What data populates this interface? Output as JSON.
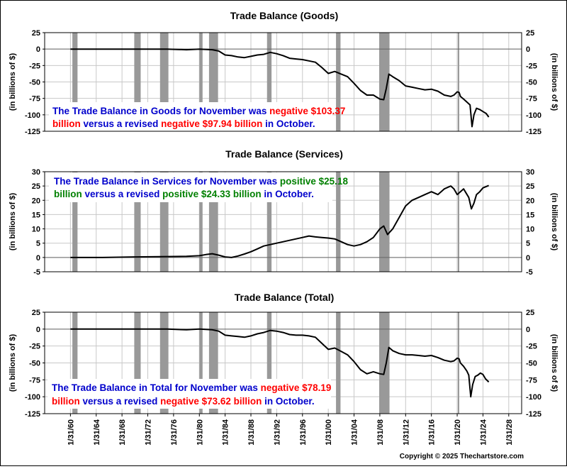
{
  "colors": {
    "recession": "#999999",
    "grid": "#c8c8c8",
    "line": "#000000",
    "blue": "#0000cc",
    "red": "#ff0000",
    "green": "#008000"
  },
  "x_ticks": [
    "1/31/60",
    "1/31/64",
    "1/31/68",
    "1/31/72",
    "1/31/76",
    "1/31/80",
    "1/31/84",
    "1/31/88",
    "1/31/92",
    "1/31/96",
    "1/31/00",
    "1/31/04",
    "1/31/08",
    "1/31/12",
    "1/31/16",
    "1/31/20",
    "1/31/24",
    "1/31/28"
  ],
  "copyright": "Copyright © 2025 Thechartstore.com",
  "recessions": [
    [
      1960.3,
      1961.1
    ],
    [
      1969.9,
      1970.9
    ],
    [
      1973.9,
      1975.2
    ],
    [
      1980.0,
      1980.5
    ],
    [
      1981.5,
      1982.9
    ],
    [
      1990.5,
      1991.2
    ],
    [
      2001.2,
      2001.9
    ],
    [
      2007.9,
      2009.5
    ],
    [
      2020.1,
      2020.3
    ]
  ],
  "chart_data": [
    {
      "type": "line",
      "title": "Trade Balance (Goods)",
      "ylabel_left": "(in billions of $)",
      "ylabel_right": "(in billions of $)",
      "ylim": [
        -125,
        25
      ],
      "yticks": [
        25,
        0,
        -25,
        -50,
        -75,
        -100,
        -125
      ],
      "xlim": [
        1956,
        2030
      ],
      "grid": true,
      "annotation": {
        "line1": [
          {
            "text": "The Trade Balance in Goods for November was ",
            "color": "blue"
          },
          {
            "text": "negative $103.37",
            "color": "red"
          }
        ],
        "line2": [
          {
            "text": "billion",
            "color": "red"
          },
          {
            "text": " versus a revised ",
            "color": "blue"
          },
          {
            "text": "negative $97.94 billion",
            "color": "red"
          },
          {
            "text": " in October.",
            "color": "blue"
          }
        ]
      },
      "series": [
        {
          "x": [
            1960,
            1965,
            1970,
            1975,
            1978,
            1980,
            1982,
            1983,
            1984,
            1985,
            1986,
            1987,
            1988,
            1989,
            1990,
            1991,
            1992,
            1993,
            1994,
            1995,
            1996,
            1997,
            1998,
            1999,
            2000,
            2001,
            2002,
            2003,
            2004,
            2005,
            2006,
            2007,
            2008,
            2008.6,
            2009.0,
            2009.4,
            2010,
            2011,
            2012,
            2013,
            2014,
            2015,
            2016,
            2017,
            2018,
            2019,
            2019.5,
            2020.0,
            2020.3,
            2020.5,
            2021,
            2022.0,
            2022.3,
            2022.6,
            2023,
            2023.5,
            2024,
            2024.5,
            2024.9
          ],
          "y": [
            0,
            0,
            0,
            0,
            -1,
            0,
            -1,
            -3,
            -9,
            -10,
            -12,
            -13,
            -11,
            -9,
            -8,
            -5,
            -7,
            -10,
            -14,
            -15,
            -16,
            -18,
            -20,
            -28,
            -37,
            -34,
            -38,
            -42,
            -52,
            -63,
            -70,
            -70,
            -76,
            -77,
            -60,
            -38,
            -42,
            -48,
            -56,
            -58,
            -60,
            -62,
            -61,
            -64,
            -70,
            -72,
            -70,
            -65,
            -66,
            -72,
            -76,
            -85,
            -118,
            -100,
            -90,
            -92,
            -95,
            -98,
            -103.37
          ]
        }
      ]
    },
    {
      "type": "line",
      "title": "Trade Balance (Services)",
      "ylabel_left": "(in billions of $)",
      "ylabel_right": "(in billions of $)",
      "ylim": [
        -5,
        30
      ],
      "yticks": [
        30,
        25,
        20,
        15,
        10,
        5,
        0,
        -5
      ],
      "xlim": [
        1956,
        2030
      ],
      "grid": true,
      "annotation": {
        "line1": [
          {
            "text": "The Trade Balance in Services for November was ",
            "color": "blue"
          },
          {
            "text": "positive $25.18",
            "color": "green"
          }
        ],
        "line2": [
          {
            "text": "billion",
            "color": "green"
          },
          {
            "text": " versus a revised ",
            "color": "blue"
          },
          {
            "text": "positive $24.33 billion",
            "color": "green"
          },
          {
            "text": " in October.",
            "color": "blue"
          }
        ]
      },
      "series": [
        {
          "x": [
            1960,
            1965,
            1970,
            1975,
            1978,
            1980,
            1981,
            1982,
            1983,
            1984,
            1985,
            1986,
            1987,
            1988,
            1989,
            1990,
            1991,
            1992,
            1993,
            1994,
            1995,
            1996,
            1997,
            1998,
            1999,
            2000,
            2001,
            2002,
            2003,
            2004,
            2005,
            2006,
            2007,
            2008,
            2008.6,
            2009.2,
            2010,
            2011,
            2012,
            2013,
            2014,
            2015,
            2016,
            2017,
            2018,
            2019,
            2019.5,
            2020.0,
            2020.5,
            2021,
            2021.8,
            2022.2,
            2022.6,
            2023,
            2023.5,
            2024,
            2024.9
          ],
          "y": [
            0,
            0,
            0.2,
            0.3,
            0.4,
            0.6,
            1.0,
            1.3,
            0.8,
            0.2,
            0,
            0.5,
            1.2,
            2,
            3,
            4,
            4.5,
            5,
            5.5,
            6,
            6.5,
            7,
            7.5,
            7.2,
            7,
            6.8,
            6.5,
            5.5,
            4.5,
            4,
            4.5,
            5.5,
            7,
            10,
            11,
            8,
            10,
            14,
            18,
            20,
            21,
            22,
            23,
            22,
            24,
            25,
            24,
            22,
            23,
            24,
            21,
            17,
            19,
            22,
            23,
            24.33,
            25.18
          ]
        }
      ]
    },
    {
      "type": "line",
      "title": "Trade Balance (Total)",
      "ylabel_left": "(in billions of $)",
      "ylabel_right": "(in billions of $)",
      "ylim": [
        -125,
        25
      ],
      "yticks": [
        25,
        0,
        -25,
        -50,
        -75,
        -100,
        -125
      ],
      "xlim": [
        1956,
        2030
      ],
      "grid": true,
      "annotation": {
        "line1": [
          {
            "text": "The Trade Balance in Total for November was ",
            "color": "blue"
          },
          {
            "text": "negative $78.19",
            "color": "red"
          }
        ],
        "line2": [
          {
            "text": "billion",
            "color": "red"
          },
          {
            "text": " versus a revised ",
            "color": "blue"
          },
          {
            "text": "negative $73.62 billion",
            "color": "red"
          },
          {
            "text": " in October.",
            "color": "blue"
          }
        ]
      },
      "series": [
        {
          "x": [
            1960,
            1965,
            1970,
            1975,
            1978,
            1980,
            1982,
            1983,
            1984,
            1985,
            1986,
            1987,
            1988,
            1989,
            1990,
            1991,
            1992,
            1993,
            1994,
            1995,
            1996,
            1997,
            1998,
            1999,
            2000,
            2001,
            2002,
            2003,
            2004,
            2005,
            2006,
            2007,
            2008,
            2008.6,
            2009.0,
            2009.4,
            2010,
            2011,
            2012,
            2013,
            2014,
            2015,
            2016,
            2017,
            2018,
            2019,
            2019.5,
            2020.0,
            2020.3,
            2020.5,
            2021,
            2021.5,
            2021.8,
            2022.1,
            2022.4,
            2022.8,
            2023.2,
            2023.6,
            2024.0,
            2024.4,
            2024.9
          ],
          "y": [
            0,
            0,
            0,
            0,
            -1,
            0,
            -1,
            -3,
            -9,
            -10,
            -11,
            -12,
            -10,
            -7,
            -5,
            -2,
            -3,
            -5,
            -8,
            -9,
            -9,
            -10,
            -12,
            -21,
            -30,
            -28,
            -33,
            -38,
            -48,
            -60,
            -66,
            -63,
            -66,
            -67,
            -50,
            -27,
            -32,
            -36,
            -38,
            -38,
            -39,
            -40,
            -39,
            -42,
            -46,
            -48,
            -47,
            -43,
            -44,
            -50,
            -55,
            -62,
            -68,
            -100,
            -82,
            -70,
            -68,
            -65,
            -67,
            -73.62,
            -78.19
          ]
        }
      ]
    }
  ]
}
